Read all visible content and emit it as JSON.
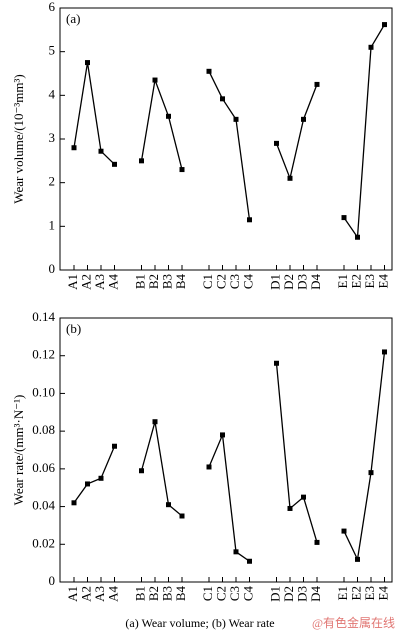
{
  "chart_data": [
    {
      "type": "line",
      "annotation": "(a)",
      "ylabel": "Wear volume/(10⁻³mm³)",
      "color": "#000000",
      "categories": [
        [
          "A1",
          "A2",
          "A3",
          "A4"
        ],
        [
          "B1",
          "B2",
          "B3",
          "B4"
        ],
        [
          "C1",
          "C2",
          "C3",
          "C4"
        ],
        [
          "D1",
          "D2",
          "D3",
          "D4"
        ],
        [
          "E1",
          "E2",
          "E3",
          "E4"
        ]
      ],
      "values": [
        [
          2.8,
          4.75,
          2.72,
          2.42
        ],
        [
          2.5,
          4.35,
          3.52,
          2.3
        ],
        [
          4.55,
          3.92,
          3.45,
          1.15
        ],
        [
          2.9,
          2.1,
          3.45,
          4.25
        ],
        [
          1.2,
          0.75,
          5.1,
          5.62
        ]
      ],
      "ylim": [
        0,
        6
      ],
      "yticks": [
        0,
        1,
        2,
        3,
        4,
        5,
        6
      ]
    },
    {
      "type": "line",
      "annotation": "(b)",
      "ylabel": "Wear rate/(mm³·N⁻¹)",
      "color": "#000000",
      "categories": [
        [
          "A1",
          "A2",
          "A3",
          "A4"
        ],
        [
          "B1",
          "B2",
          "B3",
          "B4"
        ],
        [
          "C1",
          "C2",
          "C3",
          "C4"
        ],
        [
          "D1",
          "D2",
          "D3",
          "D4"
        ],
        [
          "E1",
          "E2",
          "E3",
          "E4"
        ]
      ],
      "values": [
        [
          0.042,
          0.052,
          0.055,
          0.072
        ],
        [
          0.059,
          0.085,
          0.041,
          0.035
        ],
        [
          0.061,
          0.078,
          0.016,
          0.011
        ],
        [
          0.116,
          0.039,
          0.045,
          0.021
        ],
        [
          0.027,
          0.012,
          0.058,
          0.122
        ]
      ],
      "ylim": [
        0,
        0.14
      ],
      "yticks": [
        0,
        0.02,
        0.04,
        0.06,
        0.08,
        {
          "value": 0.1,
          "label": "0.10"
        },
        0.12,
        0.14
      ]
    }
  ],
  "caption": "(a) Wear volume; (b) Wear rate",
  "watermark": "@有色金属在线"
}
